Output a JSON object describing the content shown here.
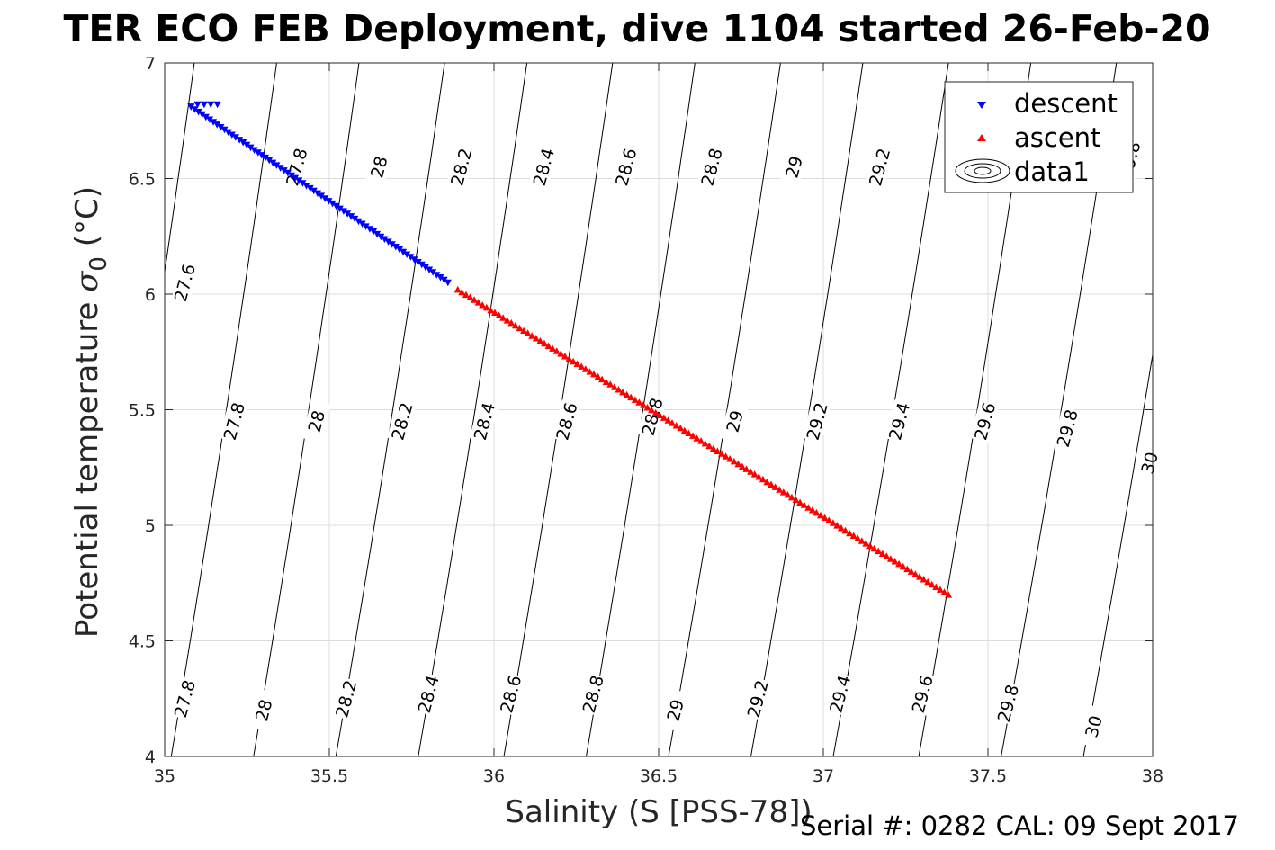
{
  "chart_data": {
    "type": "scatter",
    "title": "TER ECO FEB Deployment, dive 1104 started 26-Feb-20",
    "xlabel": "Salinity (S [PSS-78])",
    "ylabel_text": "Potential temperature ",
    "ylabel_sigma": "σ",
    "ylabel_sub": "0",
    "ylabel_unit": " (°C)",
    "footer": "Serial #: 0282  CAL: 09 Sept 2017",
    "xlim": [
      35,
      38
    ],
    "ylim": [
      4,
      7
    ],
    "xticks": [
      "35",
      "35.5",
      "36",
      "36.5",
      "37",
      "37.5",
      "38"
    ],
    "yticks": [
      "4",
      "4.5",
      "5",
      "5.5",
      "6",
      "6.5",
      "7"
    ],
    "grid": true,
    "legend": {
      "placement": "top-right",
      "entries": [
        "descent",
        "ascent",
        "data1"
      ]
    },
    "series": [
      {
        "name": "descent",
        "marker": "triangle-down",
        "color": "#0000ff",
        "start": [
          35.08,
          6.81
        ],
        "end": [
          35.86,
          6.05
        ],
        "count": 70,
        "hook": [
          [
            35.08,
            6.81
          ],
          [
            35.1,
            6.82
          ],
          [
            35.12,
            6.82
          ],
          [
            35.14,
            6.82
          ],
          [
            35.16,
            6.82
          ]
        ]
      },
      {
        "name": "ascent",
        "marker": "triangle-up",
        "color": "#ff0000",
        "start": [
          35.89,
          6.02
        ],
        "end": [
          37.38,
          4.7
        ],
        "count": 120
      }
    ],
    "contours": {
      "name": "data1",
      "color": "#000000",
      "levels": [
        27.6,
        27.8,
        28,
        28.2,
        28.4,
        28.6,
        28.8,
        29,
        29.2,
        29.4,
        29.6,
        29.8,
        30
      ],
      "level_labels": [
        "27.6",
        "27.8",
        "28",
        "28.2",
        "28.4",
        "28.6",
        "28.8",
        "29",
        "29.2",
        "29.4",
        "29.6",
        "29.8",
        "30"
      ],
      "ref_salinity_at_4C": [
        34.77,
        35.02,
        35.27,
        35.52,
        35.77,
        36.03,
        36.28,
        36.53,
        36.78,
        37.03,
        37.29,
        37.54,
        37.79
      ],
      "ref_salinity_at_7C": [
        35.09,
        35.34,
        35.59,
        35.85,
        36.1,
        36.36,
        36.61,
        36.87,
        37.12,
        37.38,
        37.63,
        37.89,
        38.14
      ],
      "label_rows": [
        [
          [
            27.8,
            35.06,
            4.25
          ],
          [
            28,
            35.3,
            4.2
          ],
          [
            28.2,
            35.55,
            4.25
          ],
          [
            28.4,
            35.8,
            4.27
          ],
          [
            28.6,
            36.05,
            4.27
          ],
          [
            28.8,
            36.3,
            4.27
          ],
          [
            29,
            36.55,
            4.2
          ],
          [
            29.2,
            36.8,
            4.25
          ],
          [
            29.4,
            37.05,
            4.27
          ],
          [
            29.6,
            37.3,
            4.27
          ],
          [
            29.8,
            37.56,
            4.23
          ],
          [
            30,
            37.82,
            4.13
          ]
        ],
        [
          [
            27.8,
            35.21,
            5.45
          ],
          [
            28,
            35.46,
            5.45
          ],
          [
            28.2,
            35.72,
            5.45
          ],
          [
            28.4,
            35.97,
            5.45
          ],
          [
            28.6,
            36.22,
            5.45
          ],
          [
            28.8,
            36.48,
            5.47
          ],
          [
            29,
            36.73,
            5.45
          ],
          [
            29.2,
            36.98,
            5.45
          ],
          [
            29.4,
            37.23,
            5.45
          ],
          [
            29.6,
            37.49,
            5.45
          ],
          [
            29.8,
            37.74,
            5.42
          ],
          [
            30,
            37.99,
            5.27
          ]
        ],
        [
          [
            27.6,
            35.06,
            6.05
          ],
          [
            27.8,
            35.4,
            6.55
          ],
          [
            28,
            35.65,
            6.55
          ],
          [
            28.2,
            35.9,
            6.55
          ],
          [
            28.4,
            36.15,
            6.55
          ],
          [
            28.6,
            36.4,
            6.55
          ],
          [
            28.8,
            36.66,
            6.55
          ],
          [
            29,
            36.91,
            6.55
          ],
          [
            29.2,
            37.17,
            6.55
          ],
          [
            29.8,
            37.93,
            6.58
          ]
        ]
      ]
    }
  }
}
